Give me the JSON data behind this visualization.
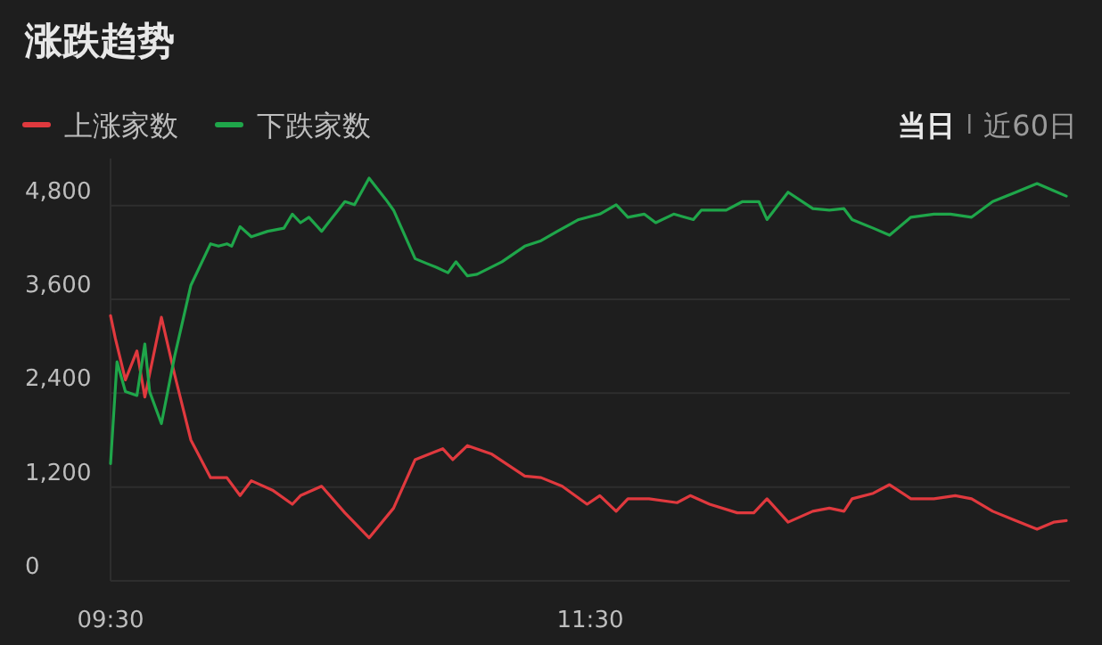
{
  "chart_data": {
    "type": "line",
    "title": "涨跌趋势",
    "annotations": [
      "当日",
      "近60日"
    ],
    "xlim": [
      9.5,
      13.5
    ],
    "xticks": [
      {
        "value": 9.5,
        "label": "09:30"
      },
      {
        "value": 11.5,
        "label": "11:30"
      }
    ],
    "ylim": [
      0,
      5400
    ],
    "yticks": [
      {
        "value": 0,
        "label": "0"
      },
      {
        "value": 1200,
        "label": "1,200"
      },
      {
        "value": 2400,
        "label": "2,400"
      },
      {
        "value": 3600,
        "label": "3,600"
      },
      {
        "value": 4800,
        "label": "4,800"
      }
    ],
    "grid": "y",
    "legend": "top left",
    "marker": "none",
    "line_style": "solid",
    "series": [
      {
        "name": "上涨家数",
        "color": "#e0393e",
        "x": [
          9.5,
          9.52,
          9.562,
          9.61,
          9.643,
          9.712,
          9.767,
          9.835,
          9.917,
          9.985,
          10.04,
          10.087,
          10.175,
          10.258,
          10.292,
          10.38,
          10.477,
          10.578,
          10.68,
          10.77,
          10.885,
          10.927,
          10.988,
          11.09,
          11.227,
          11.295,
          11.383,
          11.487,
          11.54,
          11.608,
          11.657,
          11.745,
          11.862,
          11.917,
          11.998,
          12.113,
          12.182,
          12.237,
          12.325,
          12.428,
          12.497,
          12.558,
          12.592,
          12.68,
          12.748,
          12.837,
          12.933,
          13.022,
          13.09,
          13.178,
          13.275,
          13.363,
          13.432,
          13.485
        ],
        "values": [
          3390,
          3100,
          2570,
          2940,
          2350,
          3370,
          2640,
          1800,
          1320,
          1320,
          1090,
          1280,
          1160,
          980,
          1090,
          1210,
          870,
          550,
          930,
          1550,
          1690,
          1550,
          1730,
          1620,
          1340,
          1320,
          1210,
          980,
          1090,
          890,
          1050,
          1050,
          1000,
          1090,
          980,
          870,
          870,
          1050,
          750,
          890,
          930,
          890,
          1050,
          1120,
          1230,
          1050,
          1050,
          1090,
          1050,
          890,
          770,
          660,
          750,
          770
        ]
      },
      {
        "name": "下跌家数",
        "color": "#1fa64a",
        "x": [
          9.5,
          9.527,
          9.562,
          9.61,
          9.643,
          9.663,
          9.712,
          9.767,
          9.835,
          9.917,
          9.95,
          9.985,
          10.005,
          10.04,
          10.087,
          10.155,
          10.223,
          10.258,
          10.292,
          10.327,
          10.38,
          10.477,
          10.517,
          10.578,
          10.647,
          10.68,
          10.77,
          10.817,
          10.858,
          10.907,
          10.94,
          10.988,
          11.028,
          11.132,
          11.227,
          11.295,
          11.363,
          11.452,
          11.54,
          11.608,
          11.657,
          11.725,
          11.773,
          11.848,
          11.93,
          11.963,
          12.067,
          12.135,
          12.203,
          12.237,
          12.325,
          12.428,
          12.497,
          12.558,
          12.592,
          12.68,
          12.748,
          12.837,
          12.933,
          13.002,
          13.09,
          13.178,
          13.275,
          13.363,
          13.432,
          13.485
        ],
        "values": [
          1500,
          2800,
          2420,
          2370,
          3030,
          2420,
          2010,
          2870,
          3780,
          4310,
          4280,
          4310,
          4280,
          4530,
          4400,
          4470,
          4510,
          4690,
          4580,
          4650,
          4470,
          4850,
          4810,
          5150,
          4880,
          4740,
          4120,
          4060,
          4010,
          3940,
          4080,
          3900,
          3920,
          4080,
          4280,
          4350,
          4470,
          4620,
          4690,
          4810,
          4650,
          4690,
          4580,
          4690,
          4620,
          4740,
          4740,
          4850,
          4850,
          4620,
          4970,
          4760,
          4740,
          4760,
          4620,
          4510,
          4420,
          4650,
          4690,
          4690,
          4650,
          4850,
          4970,
          5080,
          4990,
          4920
        ]
      }
    ]
  }
}
